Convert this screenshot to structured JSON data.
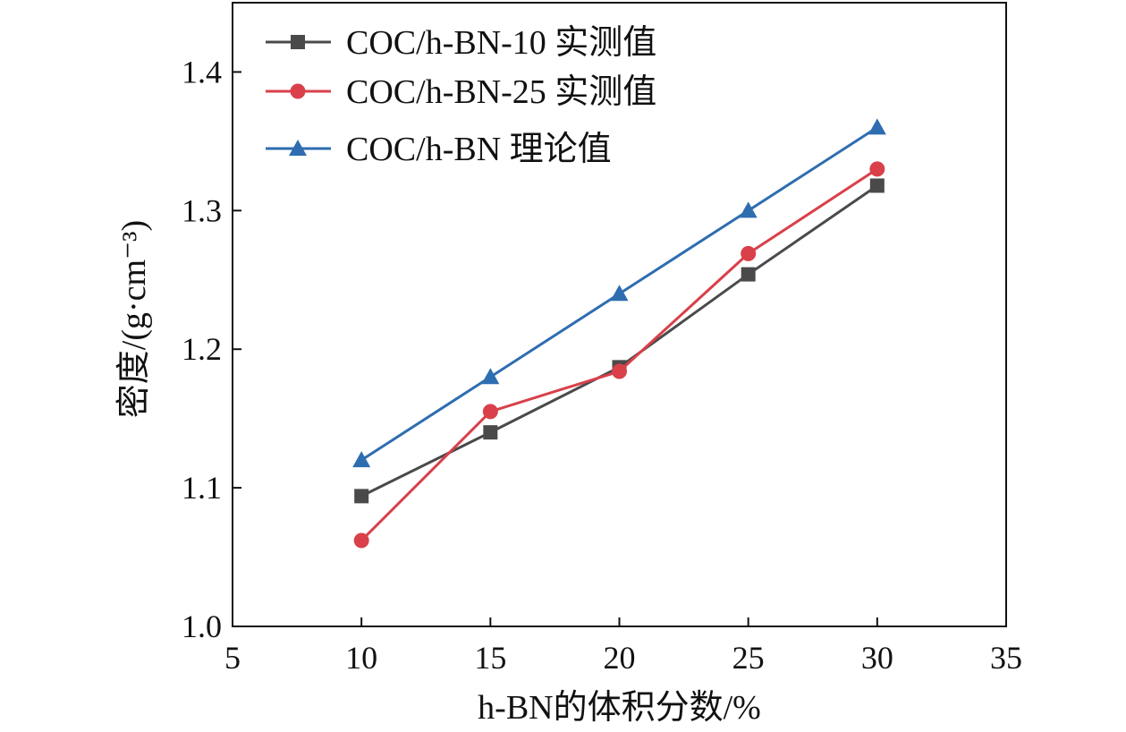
{
  "chart_data": {
    "type": "line",
    "xlabel": "h-BN的体积分数/%",
    "ylabel": "密度/(g·cm⁻³)",
    "xlim": [
      5,
      35
    ],
    "ylim": [
      1.0,
      1.45
    ],
    "x_ticks": [
      5,
      10,
      15,
      20,
      25,
      30,
      35
    ],
    "y_ticks": [
      1.0,
      1.1,
      1.2,
      1.3,
      1.4
    ],
    "x_tick_labels": [
      "5",
      "10",
      "15",
      "20",
      "25",
      "30",
      "35"
    ],
    "y_tick_labels": [
      "1.0",
      "1.1",
      "1.2",
      "1.3",
      "1.4"
    ],
    "grid": false,
    "legend_position": "top-left",
    "x": [
      10,
      15,
      20,
      25,
      30
    ],
    "series": [
      {
        "name": "COC/h-BN-10 实测值",
        "values": [
          1.094,
          1.14,
          1.187,
          1.254,
          1.318
        ],
        "color": "#4a4a4a",
        "marker": "square"
      },
      {
        "name": "COC/h-BN-25 实测值",
        "values": [
          1.062,
          1.155,
          1.184,
          1.269,
          1.33
        ],
        "color": "#d9404a",
        "marker": "circle"
      },
      {
        "name": "COC/h-BN 理论值",
        "values": [
          1.12,
          1.18,
          1.24,
          1.3,
          1.36
        ],
        "color": "#2e6db0",
        "marker": "triangle"
      }
    ]
  }
}
